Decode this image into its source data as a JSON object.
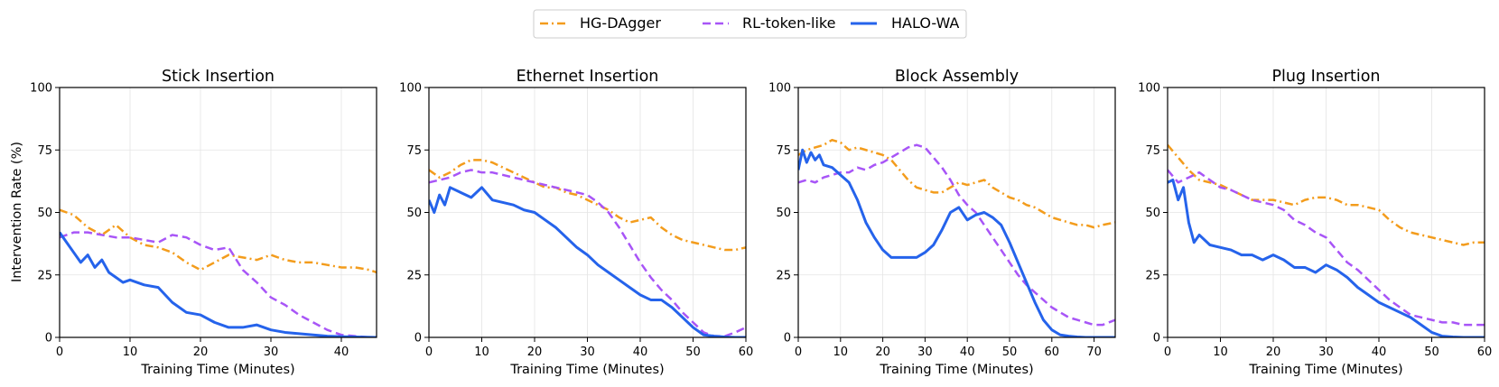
{
  "legend": {
    "items": [
      {
        "label": "HG-DAgger",
        "color": "#f39c1c",
        "dash": "dashdot"
      },
      {
        "label": "RL-token-like",
        "color": "#a855f7",
        "dash": "dashed"
      },
      {
        "label": "HALO-WA",
        "color": "#2563eb",
        "dash": "solid"
      }
    ]
  },
  "shared_ylabel": "Intervention Rate (%)",
  "chart_data": [
    {
      "type": "line",
      "title": "Stick Insertion",
      "xlabel": "Training Time (Minutes)",
      "ylabel": "Intervention Rate (%)",
      "xlim": [
        0,
        45
      ],
      "ylim": [
        0,
        100
      ],
      "xticks": [
        0,
        10,
        20,
        30,
        40
      ],
      "yticks": [
        0,
        25,
        50,
        75,
        100
      ],
      "grid": true,
      "series": [
        {
          "name": "HG-DAgger",
          "x": [
            0,
            2,
            4,
            6,
            8,
            10,
            12,
            14,
            16,
            18,
            20,
            22,
            24,
            26,
            28,
            30,
            32,
            34,
            36,
            38,
            40,
            42,
            44,
            45
          ],
          "y": [
            51,
            49,
            44,
            41,
            45,
            40,
            37,
            36,
            34,
            30,
            27,
            30,
            33,
            32,
            31,
            33,
            31,
            30,
            30,
            29,
            28,
            28,
            27,
            26
          ]
        },
        {
          "name": "RL-token-like",
          "x": [
            0,
            2,
            4,
            6,
            8,
            10,
            12,
            14,
            16,
            18,
            20,
            22,
            24,
            26,
            28,
            30,
            32,
            34,
            36,
            38,
            40,
            42,
            44,
            45
          ],
          "y": [
            40,
            42,
            42,
            41,
            40,
            40,
            39,
            38,
            41,
            40,
            37,
            35,
            36,
            27,
            22,
            16,
            13,
            9,
            6,
            3,
            1,
            0.5,
            0,
            0
          ]
        },
        {
          "name": "HALO-WA",
          "x": [
            0,
            1,
            2,
            3,
            4,
            5,
            6,
            7,
            8,
            9,
            10,
            12,
            14,
            16,
            18,
            20,
            22,
            24,
            26,
            28,
            30,
            32,
            34,
            36,
            38,
            40,
            42,
            45
          ],
          "y": [
            42,
            38,
            34,
            30,
            33,
            28,
            31,
            26,
            24,
            22,
            23,
            21,
            20,
            14,
            10,
            9,
            6,
            4,
            4,
            5,
            3,
            2,
            1.5,
            1,
            0.5,
            0.3,
            0.2,
            0
          ]
        }
      ]
    },
    {
      "type": "line",
      "title": "Ethernet Insertion",
      "xlabel": "Training Time (Minutes)",
      "ylabel": "",
      "xlim": [
        0,
        60
      ],
      "ylim": [
        0,
        100
      ],
      "xticks": [
        0,
        10,
        20,
        30,
        40,
        50,
        60
      ],
      "yticks": [
        0,
        25,
        50,
        75,
        100
      ],
      "grid": true,
      "series": [
        {
          "name": "HG-DAgger",
          "x": [
            0,
            2,
            4,
            6,
            8,
            10,
            12,
            14,
            16,
            18,
            20,
            22,
            24,
            26,
            28,
            30,
            32,
            34,
            36,
            38,
            40,
            42,
            44,
            46,
            48,
            50,
            52,
            54,
            56,
            58,
            60
          ],
          "y": [
            67,
            64,
            66,
            69,
            71,
            71,
            70,
            68,
            66,
            64,
            62,
            60,
            60,
            58,
            57,
            55,
            53,
            51,
            48,
            46,
            47,
            48,
            44,
            41,
            39,
            38,
            37,
            36,
            35,
            35,
            36
          ]
        },
        {
          "name": "RL-token-like",
          "x": [
            0,
            2,
            4,
            6,
            8,
            10,
            12,
            14,
            16,
            18,
            20,
            22,
            24,
            26,
            28,
            30,
            32,
            34,
            36,
            38,
            40,
            42,
            44,
            46,
            48,
            50,
            52,
            54,
            56,
            58,
            60
          ],
          "y": [
            62,
            63,
            64,
            66,
            67,
            66,
            66,
            65,
            64,
            63,
            62,
            61,
            60,
            59,
            58,
            57,
            54,
            50,
            44,
            37,
            30,
            24,
            19,
            15,
            10,
            6,
            2,
            0.5,
            0.5,
            2,
            4
          ]
        },
        {
          "name": "HALO-WA",
          "x": [
            0,
            1,
            2,
            3,
            4,
            6,
            8,
            10,
            12,
            14,
            16,
            18,
            20,
            22,
            24,
            26,
            28,
            30,
            32,
            34,
            36,
            38,
            40,
            42,
            44,
            46,
            48,
            50,
            52,
            54,
            56,
            58,
            60
          ],
          "y": [
            55,
            50,
            57,
            53,
            60,
            58,
            56,
            60,
            55,
            54,
            53,
            51,
            50,
            47,
            44,
            40,
            36,
            33,
            29,
            26,
            23,
            20,
            17,
            15,
            15,
            12,
            8,
            4,
            1,
            0.5,
            0.2,
            0,
            0
          ]
        }
      ]
    },
    {
      "type": "line",
      "title": "Block Assembly",
      "xlabel": "Training Time (Minutes)",
      "ylabel": "",
      "xlim": [
        0,
        75
      ],
      "ylim": [
        0,
        100
      ],
      "xticks": [
        0,
        10,
        20,
        30,
        40,
        50,
        60,
        70
      ],
      "yticks": [
        0,
        25,
        50,
        75,
        100
      ],
      "grid": true,
      "series": [
        {
          "name": "HG-DAgger",
          "x": [
            0,
            2,
            4,
            6,
            8,
            10,
            12,
            14,
            16,
            18,
            20,
            22,
            24,
            26,
            28,
            30,
            32,
            34,
            36,
            38,
            40,
            42,
            44,
            46,
            48,
            50,
            52,
            54,
            56,
            58,
            60,
            62,
            64,
            66,
            68,
            70,
            72,
            75
          ],
          "y": [
            73,
            75,
            76,
            77,
            79,
            78,
            75,
            76,
            75,
            74,
            73,
            71,
            67,
            63,
            60,
            59,
            58,
            58,
            60,
            62,
            61,
            62,
            63,
            60,
            58,
            56,
            55,
            53,
            52,
            50,
            48,
            47,
            46,
            45,
            45,
            44,
            45,
            46
          ]
        },
        {
          "name": "RL-token-like",
          "x": [
            0,
            2,
            4,
            6,
            8,
            10,
            12,
            14,
            16,
            18,
            20,
            22,
            24,
            26,
            28,
            30,
            32,
            34,
            36,
            38,
            40,
            42,
            44,
            46,
            48,
            50,
            52,
            54,
            56,
            58,
            60,
            62,
            64,
            66,
            68,
            70,
            72,
            75
          ],
          "y": [
            62,
            63,
            62,
            64,
            65,
            66,
            66,
            68,
            67,
            69,
            70,
            72,
            74,
            76,
            77,
            76,
            72,
            68,
            63,
            57,
            53,
            50,
            45,
            40,
            35,
            30,
            25,
            21,
            18,
            15,
            12,
            10,
            8,
            7,
            6,
            5,
            5,
            7
          ]
        },
        {
          "name": "HALO-WA",
          "x": [
            0,
            1,
            2,
            3,
            4,
            5,
            6,
            8,
            10,
            12,
            14,
            16,
            18,
            20,
            22,
            24,
            26,
            28,
            30,
            32,
            34,
            36,
            38,
            40,
            42,
            44,
            46,
            48,
            50,
            52,
            54,
            56,
            58,
            60,
            62,
            64,
            66,
            68,
            70,
            75
          ],
          "y": [
            67,
            75,
            70,
            74,
            71,
            73,
            69,
            68,
            65,
            62,
            55,
            46,
            40,
            35,
            32,
            32,
            32,
            32,
            34,
            37,
            43,
            50,
            52,
            47,
            49,
            50,
            48,
            45,
            38,
            30,
            22,
            14,
            7,
            3,
            1,
            0.5,
            0.2,
            0,
            0,
            0
          ]
        }
      ]
    },
    {
      "type": "line",
      "title": "Plug Insertion",
      "xlabel": "Training Time (Minutes)",
      "ylabel": "",
      "xlim": [
        0,
        60
      ],
      "ylim": [
        0,
        100
      ],
      "xticks": [
        0,
        10,
        20,
        30,
        40,
        50,
        60
      ],
      "yticks": [
        0,
        25,
        50,
        75,
        100
      ],
      "grid": true,
      "series": [
        {
          "name": "HG-DAgger",
          "x": [
            0,
            2,
            4,
            6,
            8,
            10,
            12,
            14,
            16,
            18,
            20,
            22,
            24,
            26,
            28,
            30,
            32,
            34,
            36,
            38,
            40,
            42,
            44,
            46,
            48,
            50,
            52,
            54,
            56,
            58,
            60
          ],
          "y": [
            77,
            72,
            67,
            63,
            62,
            61,
            59,
            57,
            55,
            55,
            55,
            54,
            53,
            55,
            56,
            56,
            55,
            53,
            53,
            52,
            51,
            47,
            44,
            42,
            41,
            40,
            39,
            38,
            37,
            38,
            38
          ]
        },
        {
          "name": "RL-token-like",
          "x": [
            0,
            2,
            4,
            6,
            8,
            10,
            12,
            14,
            16,
            18,
            20,
            22,
            24,
            26,
            28,
            30,
            32,
            34,
            36,
            38,
            40,
            42,
            44,
            46,
            48,
            50,
            52,
            54,
            56,
            58,
            60
          ],
          "y": [
            67,
            62,
            64,
            66,
            63,
            60,
            59,
            57,
            55,
            54,
            53,
            51,
            47,
            45,
            42,
            40,
            35,
            30,
            27,
            23,
            19,
            15,
            12,
            9,
            8,
            7,
            6,
            6,
            5,
            5,
            5
          ]
        },
        {
          "name": "HALO-WA",
          "x": [
            0,
            1,
            2,
            3,
            4,
            5,
            6,
            8,
            10,
            12,
            14,
            16,
            18,
            20,
            22,
            24,
            26,
            28,
            30,
            32,
            34,
            36,
            38,
            40,
            42,
            44,
            46,
            48,
            50,
            52,
            54,
            56,
            58,
            60
          ],
          "y": [
            62,
            63,
            55,
            60,
            46,
            38,
            41,
            37,
            36,
            35,
            33,
            33,
            31,
            33,
            31,
            28,
            28,
            26,
            29,
            27,
            24,
            20,
            17,
            14,
            12,
            10,
            8,
            5,
            2,
            0.5,
            0.2,
            0,
            0,
            0
          ]
        }
      ]
    }
  ]
}
